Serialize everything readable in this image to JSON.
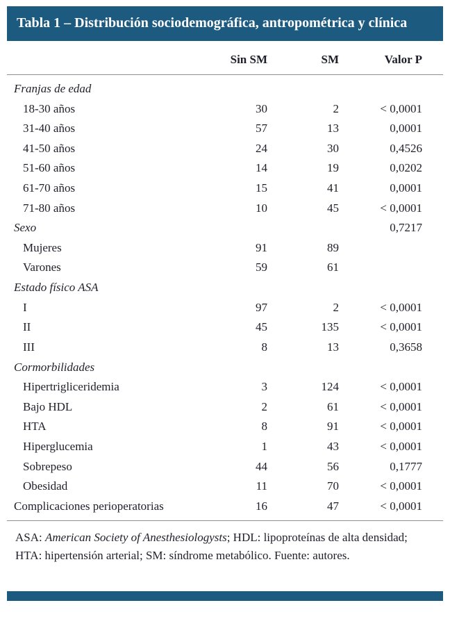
{
  "colors": {
    "header_bg": "#1c5a80",
    "header_text": "#ffffff",
    "body_text": "#1e1f29",
    "rule": "#8f8f8f"
  },
  "table": {
    "title": "Tabla 1 – Distribución sociodemográfica, antropométrica y clínica",
    "columns": [
      "",
      "Sin SM",
      "SM",
      "Valor P"
    ],
    "rows": [
      {
        "style": "section",
        "label": "Franjas de edad",
        "sin_sm": "",
        "sm": "",
        "p": ""
      },
      {
        "style": "item",
        "label": "18-30 años",
        "sin_sm": "30",
        "sm": "2",
        "p": "< 0,0001"
      },
      {
        "style": "item",
        "label": "31-40 años",
        "sin_sm": "57",
        "sm": "13",
        "p": "0,0001"
      },
      {
        "style": "item",
        "label": "41-50 años",
        "sin_sm": "24",
        "sm": "30",
        "p": "0,4526"
      },
      {
        "style": "item",
        "label": "51-60 años",
        "sin_sm": "14",
        "sm": "19",
        "p": "0,0202"
      },
      {
        "style": "item",
        "label": "61-70 años",
        "sin_sm": "15",
        "sm": "41",
        "p": "0,0001"
      },
      {
        "style": "item",
        "label": "71-80 años",
        "sin_sm": "10",
        "sm": "45",
        "p": "< 0,0001"
      },
      {
        "style": "section",
        "label": "Sexo",
        "sin_sm": "",
        "sm": "",
        "p": "0,7217"
      },
      {
        "style": "item",
        "label": "Mujeres",
        "sin_sm": "91",
        "sm": "89",
        "p": ""
      },
      {
        "style": "item",
        "label": "Varones",
        "sin_sm": "59",
        "sm": "61",
        "p": ""
      },
      {
        "style": "section",
        "label": "Estado físico ASA",
        "sin_sm": "",
        "sm": "",
        "p": ""
      },
      {
        "style": "item",
        "label": "I",
        "sin_sm": "97",
        "sm": "2",
        "p": "< 0,0001"
      },
      {
        "style": "item",
        "label": "II",
        "sin_sm": "45",
        "sm": "135",
        "p": "< 0,0001"
      },
      {
        "style": "item",
        "label": "III",
        "sin_sm": "8",
        "sm": "13",
        "p": "0,3658"
      },
      {
        "style": "section",
        "label": "Cormorbilidades",
        "sin_sm": "",
        "sm": "",
        "p": ""
      },
      {
        "style": "item",
        "label": "Hipertrigliceridemia",
        "sin_sm": "3",
        "sm": "124",
        "p": "< 0,0001"
      },
      {
        "style": "item",
        "label": "Bajo HDL",
        "sin_sm": "2",
        "sm": "61",
        "p": "< 0,0001"
      },
      {
        "style": "item",
        "label": "HTA",
        "sin_sm": "8",
        "sm": "91",
        "p": "< 0,0001"
      },
      {
        "style": "item",
        "label": "Hiperglucemia",
        "sin_sm": "1",
        "sm": "43",
        "p": "< 0,0001"
      },
      {
        "style": "item",
        "label": "Sobrepeso",
        "sin_sm": "44",
        "sm": "56",
        "p": "0,1777"
      },
      {
        "style": "item",
        "label": "Obesidad",
        "sin_sm": "11",
        "sm": "70",
        "p": "< 0,0001"
      },
      {
        "style": "plain",
        "label": "Complicaciones perioperatorias",
        "sin_sm": "16",
        "sm": "47",
        "p": "< 0,0001"
      }
    ],
    "footnote": {
      "part1": "ASA: ",
      "society": "American Society of Anesthesiologysts",
      "part2": "; HDL: lipoproteínas de alta densidad; HTA: hipertensión arterial; SM: síndrome metabólico. Fuente: autores."
    }
  }
}
